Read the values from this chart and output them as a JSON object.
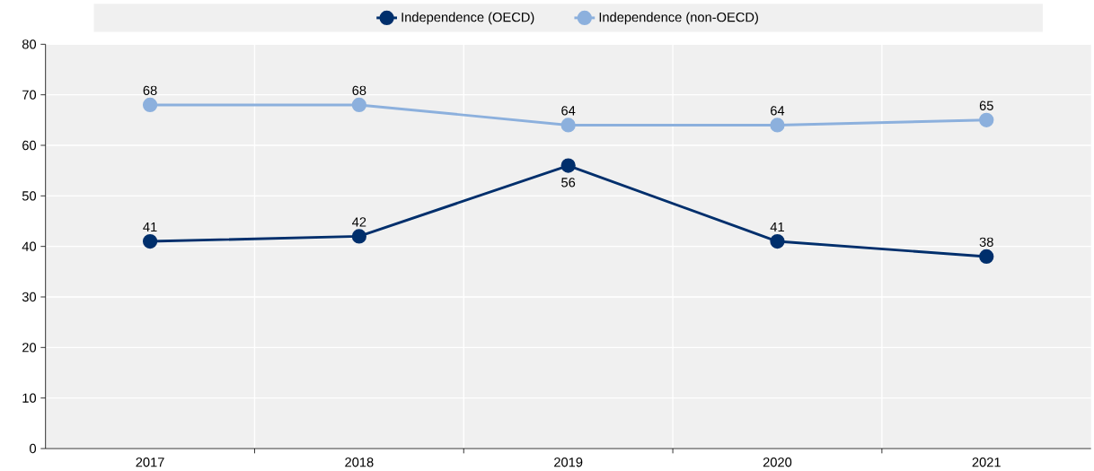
{
  "chart_data": {
    "type": "line",
    "categories": [
      "2017",
      "2018",
      "2019",
      "2020",
      "2021"
    ],
    "series": [
      {
        "name": "Independence (OECD)",
        "color": "#002f6c",
        "values": [
          41,
          42,
          56,
          41,
          38
        ]
      },
      {
        "name": "Independence (non-OECD)",
        "color": "#8cb0dd",
        "values": [
          68,
          68,
          64,
          64,
          65
        ]
      }
    ],
    "ylim": [
      0,
      80
    ],
    "yticks": [
      0,
      10,
      20,
      30,
      40,
      50,
      60,
      70,
      80
    ],
    "grid": true,
    "legend": "top",
    "marker": "circle",
    "line_style": "solid",
    "data_labels": true
  }
}
